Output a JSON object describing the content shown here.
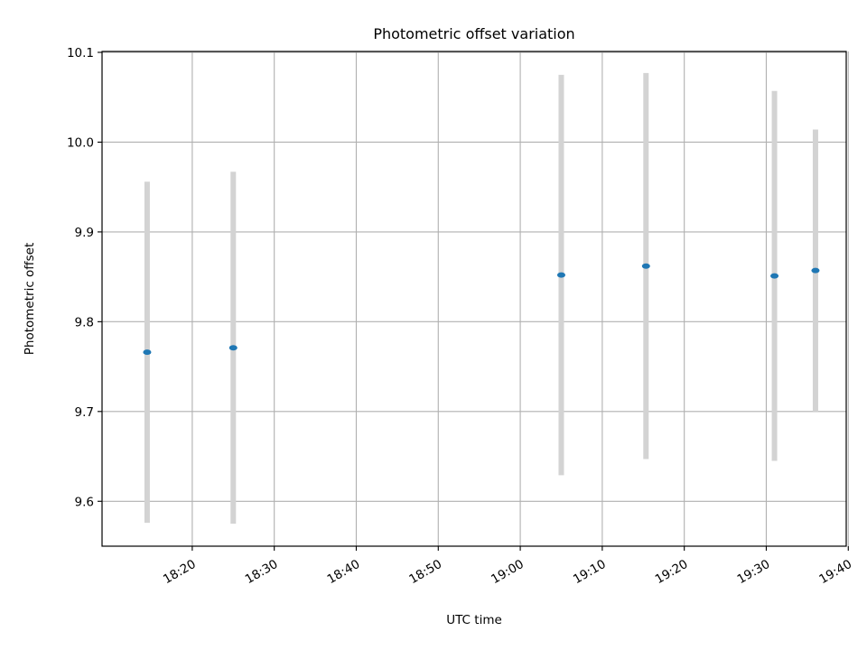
{
  "chart_data": {
    "type": "scatter",
    "title": "Photometric offset variation",
    "xlabel": "UTC time",
    "ylabel": "Photometric offset",
    "x_ticks": [
      "18:20",
      "18:30",
      "18:40",
      "18:50",
      "19:00",
      "19:10",
      "19:20",
      "19:30",
      "19:40"
    ],
    "y_ticks": [
      "9.6",
      "9.7",
      "9.8",
      "9.9",
      "10.0",
      "10.1"
    ],
    "xlim": [
      "18:09:00",
      "19:39:45"
    ],
    "ylim": [
      9.55,
      10.101
    ],
    "grid": true,
    "series": [
      {
        "color": "#1f77b4",
        "errorbar_color": "#d3d3d3",
        "points": [
          {
            "x": "18:14:30",
            "y": 9.766,
            "yerr": 0.19
          },
          {
            "x": "18:25:00",
            "y": 9.771,
            "yerr": 0.196
          },
          {
            "x": "19:05:00",
            "y": 9.852,
            "yerr": 0.223
          },
          {
            "x": "19:15:20",
            "y": 9.862,
            "yerr": 0.215
          },
          {
            "x": "19:31:00",
            "y": 9.851,
            "yerr": 0.206
          },
          {
            "x": "19:36:00",
            "y": 9.857,
            "yerr": 0.157
          }
        ]
      }
    ]
  }
}
